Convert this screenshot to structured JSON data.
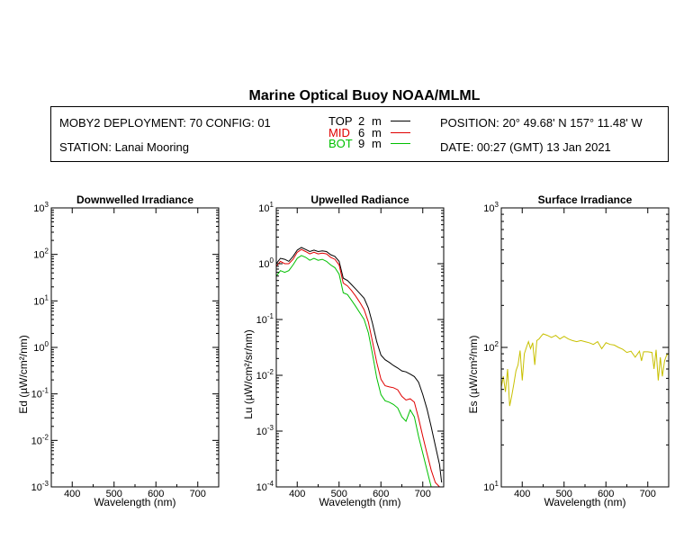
{
  "figure": {
    "title": "Marine Optical Buoy NOAA/MLML",
    "deployment": "MOBY2 DEPLOYMENT: 70 CONFIG: 01",
    "station": "STATION: Lanai Mooring",
    "position": "POSITION: 20° 49.68' N   157° 11.48' W",
    "date": "DATE: 00:27 (GMT) 13 Jan 2021",
    "depth_legend": [
      {
        "tag": "TOP",
        "value": "2",
        "unit": "m",
        "color": "#000000"
      },
      {
        "tag": "MID",
        "value": "6",
        "unit": "m",
        "color": "#e00000"
      },
      {
        "tag": "BOT",
        "value": "9",
        "unit": "m",
        "color": "#00c000"
      }
    ]
  },
  "chart_data": [
    {
      "type": "line",
      "title": "Downwelled Irradiance",
      "xlabel": "Wavelength (nm)",
      "ylabel": "Ed (µW/cm²/nm)",
      "xlim": [
        350,
        750
      ],
      "ylim": [
        0.001,
        1000
      ],
      "yscale": "log",
      "xticks": [
        400,
        500,
        600,
        700
      ],
      "yticks": [
        0.001,
        0.01,
        0.1,
        1,
        10,
        100,
        1000
      ],
      "ytick_labels": [
        {
          "base": "10",
          "exp": "-3"
        },
        {
          "base": "10",
          "exp": "-2"
        },
        {
          "base": "10",
          "exp": "-1"
        },
        {
          "base": "10",
          "exp": "0"
        },
        {
          "base": "10",
          "exp": "1"
        },
        {
          "base": "10",
          "exp": "2"
        },
        {
          "base": "10",
          "exp": "3"
        }
      ],
      "series": []
    },
    {
      "type": "line",
      "title": "Upwelled Radiance",
      "xlabel": "Wavelength (nm)",
      "ylabel": "Lu (µW/cm²/sr/nm)",
      "xlim": [
        350,
        750
      ],
      "ylim": [
        0.0001,
        10
      ],
      "yscale": "log",
      "xticks": [
        400,
        500,
        600,
        700
      ],
      "yticks": [
        0.0001,
        0.001,
        0.01,
        0.1,
        1,
        10
      ],
      "ytick_labels": [
        {
          "base": "10",
          "exp": "-4"
        },
        {
          "base": "10",
          "exp": "-3"
        },
        {
          "base": "10",
          "exp": "-2"
        },
        {
          "base": "10",
          "exp": "-1"
        },
        {
          "base": "10",
          "exp": "0"
        },
        {
          "base": "10",
          "exp": "1"
        }
      ],
      "series": [
        {
          "color": "#000000",
          "x": [
            350,
            360,
            370,
            380,
            390,
            400,
            410,
            420,
            430,
            440,
            450,
            460,
            470,
            480,
            490,
            500,
            510,
            520,
            530,
            540,
            550,
            560,
            570,
            580,
            590,
            600,
            610,
            620,
            630,
            640,
            650,
            660,
            670,
            680,
            690,
            700,
            710,
            720,
            730,
            740,
            745
          ],
          "y": [
            1.0,
            1.25,
            1.2,
            1.1,
            1.35,
            1.75,
            1.95,
            1.8,
            1.65,
            1.75,
            1.65,
            1.7,
            1.65,
            1.45,
            1.35,
            1.1,
            0.55,
            0.5,
            0.42,
            0.35,
            0.29,
            0.24,
            0.16,
            0.085,
            0.04,
            0.023,
            0.019,
            0.017,
            0.015,
            0.0135,
            0.012,
            0.0115,
            0.0105,
            0.0095,
            0.0075,
            0.0045,
            0.0025,
            0.0012,
            0.00055,
            0.00025,
            0.00012
          ]
        },
        {
          "color": "#e00000",
          "x": [
            350,
            360,
            370,
            380,
            390,
            400,
            410,
            420,
            430,
            440,
            450,
            460,
            470,
            480,
            490,
            500,
            510,
            520,
            530,
            540,
            550,
            560,
            570,
            580,
            590,
            600,
            610,
            620,
            630,
            640,
            650,
            660,
            670,
            680,
            690,
            700,
            710,
            720,
            730,
            740,
            745
          ],
          "y": [
            0.9,
            1.1,
            1.0,
            1.0,
            1.2,
            1.6,
            1.8,
            1.65,
            1.5,
            1.6,
            1.5,
            1.55,
            1.5,
            1.3,
            1.2,
            0.95,
            0.45,
            0.4,
            0.33,
            0.26,
            0.2,
            0.15,
            0.09,
            0.04,
            0.017,
            0.0085,
            0.0065,
            0.0062,
            0.006,
            0.0055,
            0.0042,
            0.0036,
            0.0038,
            0.0033,
            0.0017,
            0.0008,
            0.0004,
            0.0002,
            0.00012,
            0.0001,
            0.0001
          ]
        },
        {
          "color": "#00c000",
          "x": [
            350,
            360,
            370,
            380,
            390,
            400,
            410,
            420,
            430,
            440,
            450,
            460,
            470,
            480,
            490,
            500,
            510,
            520,
            530,
            540,
            550,
            560,
            570,
            580,
            590,
            600,
            610,
            620,
            630,
            640,
            650,
            660,
            670,
            680,
            690,
            700,
            710,
            720,
            730,
            740,
            745
          ],
          "y": [
            0.6,
            0.75,
            0.7,
            0.75,
            0.95,
            1.25,
            1.4,
            1.3,
            1.15,
            1.25,
            1.15,
            1.2,
            1.1,
            0.95,
            0.85,
            0.65,
            0.3,
            0.28,
            0.22,
            0.17,
            0.13,
            0.1,
            0.058,
            0.024,
            0.009,
            0.0045,
            0.0035,
            0.0033,
            0.003,
            0.0026,
            0.0018,
            0.0015,
            0.0024,
            0.0018,
            0.0008,
            0.0004,
            0.0002,
            0.0001,
            0.0001,
            0.0001,
            0.0001
          ]
        }
      ]
    },
    {
      "type": "line",
      "title": "Surface Irradiance",
      "xlabel": "Wavelength (nm)",
      "ylabel": "Es (µW/cm²/nm)",
      "xlim": [
        350,
        750
      ],
      "ylim": [
        10,
        1000
      ],
      "yscale": "log",
      "xticks": [
        400,
        500,
        600,
        700
      ],
      "yticks": [
        10,
        100,
        1000
      ],
      "ytick_labels": [
        {
          "base": "10",
          "exp": "1"
        },
        {
          "base": "10",
          "exp": "2"
        },
        {
          "base": "10",
          "exp": "3"
        }
      ],
      "series": [
        {
          "color": "#c8c000",
          "x": [
            350,
            355,
            360,
            365,
            370,
            375,
            380,
            385,
            390,
            395,
            400,
            405,
            410,
            415,
            420,
            425,
            430,
            435,
            440,
            445,
            450,
            460,
            470,
            480,
            490,
            500,
            510,
            520,
            530,
            540,
            550,
            560,
            570,
            580,
            590,
            600,
            610,
            620,
            630,
            640,
            650,
            660,
            670,
            680,
            685,
            690,
            700,
            710,
            715,
            720,
            725,
            730,
            735,
            740,
            745,
            750
          ],
          "y": [
            52,
            62,
            48,
            70,
            38,
            45,
            55,
            68,
            75,
            95,
            58,
            90,
            100,
            110,
            98,
            108,
            75,
            112,
            115,
            120,
            125,
            122,
            118,
            122,
            115,
            120,
            115,
            112,
            110,
            112,
            110,
            108,
            105,
            110,
            98,
            108,
            105,
            104,
            100,
            97,
            92,
            94,
            85,
            94,
            80,
            93,
            93,
            92,
            70,
            96,
            58,
            85,
            62,
            80,
            88,
            90
          ]
        }
      ]
    }
  ]
}
